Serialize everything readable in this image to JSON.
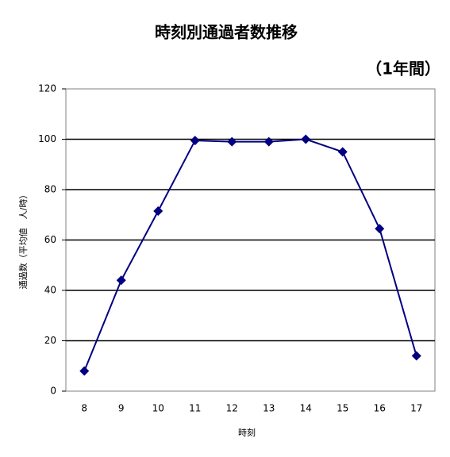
{
  "chart_data": {
    "type": "line",
    "title": "時刻別通過者数推移",
    "subtitle": "（1年間）",
    "x_label": "時刻",
    "y_label": "通過数（平均値　人/時）",
    "categories": [
      "8",
      "9",
      "10",
      "11",
      "12",
      "13",
      "14",
      "15",
      "16",
      "17"
    ],
    "values": [
      8,
      44,
      71.5,
      99.5,
      99,
      99,
      100,
      95,
      64.5,
      14
    ],
    "color": "#000080",
    "ylim": [
      0,
      120
    ],
    "yticks": [
      0,
      20,
      40,
      60,
      80,
      100,
      120
    ],
    "grid": true
  }
}
